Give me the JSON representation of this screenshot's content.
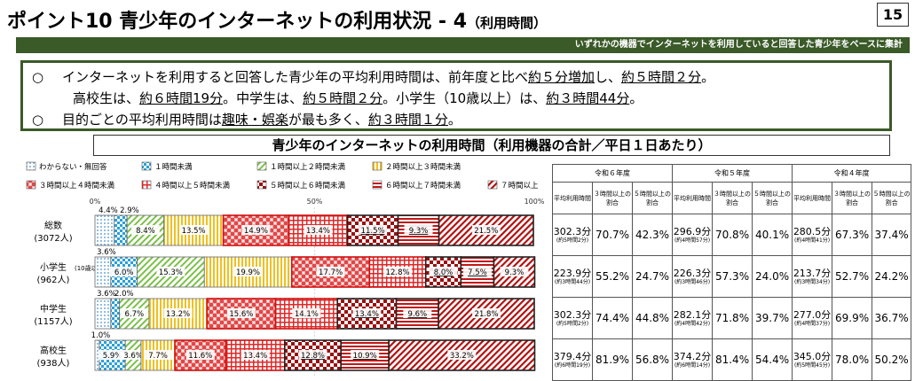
{
  "title_main": "ポイント10 青少年のインターネットの利用状況 - 4",
  "title_sub": "（利用時間）",
  "page_number": "15",
  "banner": "いずれかの機器でインターネットを利用していると回答した青少年をベースに集計",
  "summary": {
    "l1_a": "インターネットを利用すると回答した青少年の平均利用時間は、前年度と比べ",
    "l1_b": "約５分増加",
    "l1_c": "し、",
    "l1_d": "約５時間２分",
    "l1_e": "。",
    "l2_a": "高校生は、",
    "l2_b": "約６時間19分",
    "l2_c": "。中学生は、",
    "l2_d": "約５時間２分",
    "l2_e": "。小学生（10歳以上）は、",
    "l2_f": "約３時間44分",
    "l2_g": "。",
    "l3_a": "目的ごとの平均利用時間は",
    "l3_b": "趣味・娯楽",
    "l3_c": "が最も多く、",
    "l3_d": "約３時間１分",
    "l3_e": "。",
    "bullet": "○"
  },
  "chart_title": "青少年のインターネットの利用時間（利用機器の合計／平日１日あたり）",
  "chart_data": {
    "type": "bar",
    "orientation": "horizontal",
    "stacked": true,
    "xlim": [
      0,
      100
    ],
    "ticks": [
      "0%",
      "50%",
      "100%"
    ],
    "legend_placement": "top",
    "categories": [
      {
        "name": "総数",
        "n": "(3072人)"
      },
      {
        "name": "小学生",
        "note": "(10歳以上)",
        "n": "(962人)"
      },
      {
        "name": "中学生",
        "n": "(1157人)"
      },
      {
        "name": "高校生",
        "n": "(938人)"
      }
    ],
    "series": [
      {
        "name": "わからない・無回答",
        "color": "#4a90c8",
        "pattern": "dots",
        "values": [
          4.4,
          3.6,
          3.6,
          1.0
        ]
      },
      {
        "name": "１時間未満",
        "color": "#2aa0d8",
        "pattern": "check",
        "values": [
          2.9,
          6.0,
          2.0,
          5.9
        ]
      },
      {
        "name": "１時間以上２時間未満",
        "color": "#7cc04a",
        "pattern": "diag",
        "values": [
          8.4,
          15.3,
          6.7,
          3.6
        ]
      },
      {
        "name": "２時間以上３時間未満",
        "color": "#f0c020",
        "pattern": "vlines",
        "values": [
          13.5,
          19.9,
          13.2,
          7.7
        ]
      },
      {
        "name": "３時間以上４時間未満",
        "color": "#e04848",
        "pattern": "redcheck",
        "values": [
          14.9,
          17.7,
          15.6,
          11.6
        ]
      },
      {
        "name": "４時間以上５時間未満",
        "color": "#e02828",
        "pattern": "grid",
        "values": [
          13.4,
          12.8,
          14.1,
          13.4
        ]
      },
      {
        "name": "５時間以上６時間未満",
        "color": "#c01818",
        "pattern": "darkcheck",
        "values": [
          11.5,
          8.0,
          13.4,
          12.8
        ]
      },
      {
        "name": "６時間以上７時間未満",
        "color": "#b01010",
        "pattern": "hlines",
        "values": [
          9.3,
          7.5,
          9.6,
          10.9
        ]
      },
      {
        "name": "７時間以上",
        "color": "#a01010",
        "pattern": "diagred",
        "values": [
          21.5,
          9.3,
          21.8,
          33.2
        ]
      }
    ],
    "data_labels": [
      [
        "4.4%",
        "2.9%",
        "8.4%",
        "13.5%",
        "14.9%",
        "13.4%",
        "11.5%",
        "9.3%",
        "21.5%"
      ],
      [
        "3.6%",
        "6.0%",
        "15.3%",
        "19.9%",
        "17.7%",
        "12.8%",
        "8.0%",
        "7.5%",
        "9.3%"
      ],
      [
        "3.6%",
        "2.0%",
        "6.7%",
        "13.2%",
        "15.6%",
        "14.1%",
        "13.4%",
        "9.6%",
        "21.8%"
      ],
      [
        "1.0%",
        "5.9%",
        "3.6%",
        "7.7%",
        "11.6%",
        "13.4%",
        "12.8%",
        "10.9%",
        "33.2%"
      ]
    ]
  },
  "table": {
    "years": [
      "令和６年度",
      "令和５年度",
      "令和４年度"
    ],
    "col_avg": "平均利用時間",
    "col_3h": "３時間以上の割合",
    "col_5h": "５時間以上の割合",
    "rows": [
      {
        "cells": [
          {
            "avg": "302.3分",
            "hm": "(約5時間2分)",
            "p3": "70.7%",
            "p5": "42.3%"
          },
          {
            "avg": "296.9分",
            "hm": "(約4時間57分)",
            "p3": "70.8%",
            "p5": "40.1%"
          },
          {
            "avg": "280.5分",
            "hm": "(約4時間41分)",
            "p3": "67.3%",
            "p5": "37.4%"
          }
        ]
      },
      {
        "cells": [
          {
            "avg": "223.9分",
            "hm": "(約3時間44分)",
            "p3": "55.2%",
            "p5": "24.7%"
          },
          {
            "avg": "226.3分",
            "hm": "(約3時間46分)",
            "p3": "57.3%",
            "p5": "24.0%"
          },
          {
            "avg": "213.7分",
            "hm": "(約3時間34分)",
            "p3": "52.7%",
            "p5": "24.2%"
          }
        ]
      },
      {
        "cells": [
          {
            "avg": "302.3分",
            "hm": "(約5時間2分)",
            "p3": "74.4%",
            "p5": "44.8%"
          },
          {
            "avg": "282.1分",
            "hm": "(約4時間42分)",
            "p3": "71.8%",
            "p5": "39.7%"
          },
          {
            "avg": "277.0分",
            "hm": "(約4時間37分)",
            "p3": "69.9%",
            "p5": "36.7%"
          }
        ]
      },
      {
        "cells": [
          {
            "avg": "379.4分",
            "hm": "(約6時間19分)",
            "p3": "81.9%",
            "p5": "56.8%"
          },
          {
            "avg": "374.2分",
            "hm": "(約6時間14分)",
            "p3": "81.4%",
            "p5": "54.4%"
          },
          {
            "avg": "345.0分",
            "hm": "(約5時間45分)",
            "p3": "78.0%",
            "p5": "50.2%"
          }
        ]
      }
    ]
  }
}
